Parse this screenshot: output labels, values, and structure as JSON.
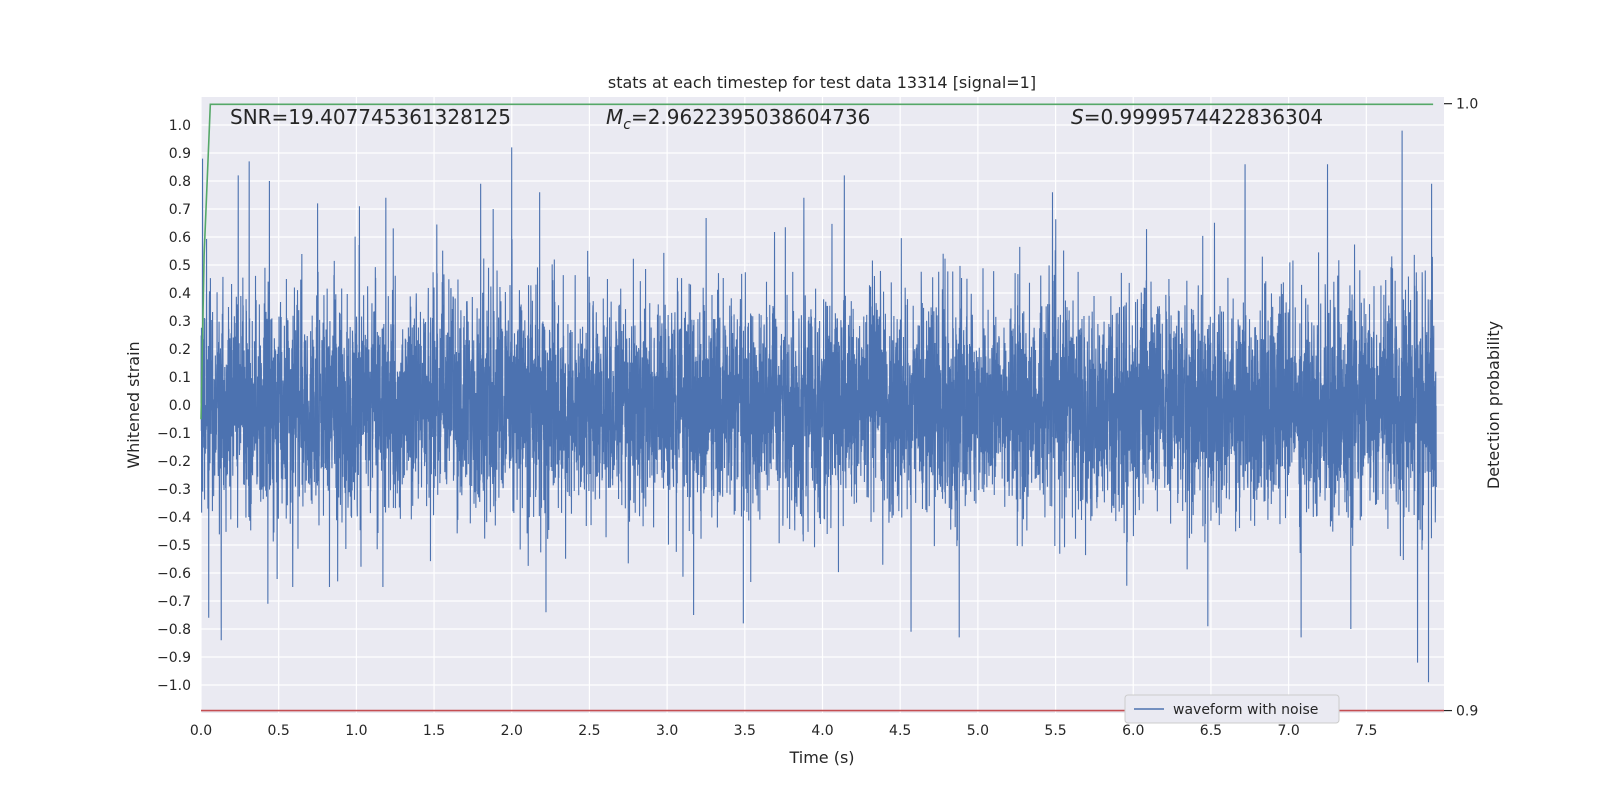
{
  "chart_data": {
    "type": "line",
    "title": "stats at each timestep for test data 13314 [signal=1]",
    "xlabel": "Time (s)",
    "ylabel": "Whitened strain",
    "ylabel_right": "Detection probability",
    "xlim": [
      0.0,
      8.0
    ],
    "ylim": [
      -1.1,
      1.1
    ],
    "ylim_right": [
      0.8996,
      1.0011
    ],
    "x_ticks": [
      "0.0",
      "0.5",
      "1.0",
      "1.5",
      "2.0",
      "2.5",
      "3.0",
      "3.5",
      "4.0",
      "4.5",
      "5.0",
      "5.5",
      "6.0",
      "6.5",
      "7.0",
      "7.5"
    ],
    "y_ticks": [
      "1.0",
      "0.9",
      "0.8",
      "0.7",
      "0.6",
      "0.5",
      "0.4",
      "0.3",
      "0.2",
      "0.1",
      "0.0",
      "−0.1",
      "−0.2",
      "−0.3",
      "−0.4",
      "−0.5",
      "−0.6",
      "−0.7",
      "−0.8",
      "−0.9",
      "−1.0"
    ],
    "y_ticks_right": [
      "1.0",
      "0.9"
    ],
    "grid": true,
    "legend": {
      "placement": "lower-right",
      "entries": [
        "waveform with noise"
      ]
    },
    "annotations": {
      "snr": "SNR=19.407745361328125",
      "mc_symbol": "M",
      "mc_sub": "c",
      "mc_value": "=2.9622395038604736",
      "s_symbol": "S",
      "s_value": "=0.9999574422836304"
    },
    "series": [
      {
        "name": "waveform with noise",
        "color": "#4c72b0",
        "axis": "left",
        "sample_count": 8000,
        "typical_abs": 0.2,
        "peaks": [
          {
            "x": 0.01,
            "y": 0.88
          },
          {
            "x": 0.05,
            "y": -0.76
          },
          {
            "x": 0.13,
            "y": -0.84
          },
          {
            "x": 0.24,
            "y": 0.82
          },
          {
            "x": 0.31,
            "y": 0.87
          },
          {
            "x": 0.44,
            "y": 0.8
          },
          {
            "x": 0.43,
            "y": -0.71
          },
          {
            "x": 0.75,
            "y": 0.72
          },
          {
            "x": 1.02,
            "y": 0.71
          },
          {
            "x": 1.19,
            "y": 0.74
          },
          {
            "x": 1.8,
            "y": 0.79
          },
          {
            "x": 1.88,
            "y": 0.7
          },
          {
            "x": 2.0,
            "y": 0.92
          },
          {
            "x": 2.18,
            "y": 0.76
          },
          {
            "x": 2.22,
            "y": -0.74
          },
          {
            "x": 3.17,
            "y": 0.71
          },
          {
            "x": 3.17,
            "y": -0.75
          },
          {
            "x": 3.49,
            "y": -0.78
          },
          {
            "x": 3.88,
            "y": 0.74
          },
          {
            "x": 4.14,
            "y": 0.82
          },
          {
            "x": 4.57,
            "y": -0.81
          },
          {
            "x": 4.88,
            "y": -0.83
          },
          {
            "x": 5.48,
            "y": 0.76
          },
          {
            "x": 6.48,
            "y": -0.79
          },
          {
            "x": 6.72,
            "y": 0.86
          },
          {
            "x": 7.08,
            "y": -0.83
          },
          {
            "x": 7.25,
            "y": 0.86
          },
          {
            "x": 7.4,
            "y": -0.8
          },
          {
            "x": 7.73,
            "y": 0.98
          },
          {
            "x": 7.83,
            "y": -0.92
          },
          {
            "x": 7.9,
            "y": -0.99
          },
          {
            "x": 7.92,
            "y": 0.79
          }
        ]
      },
      {
        "name": "",
        "color": "#55a868",
        "axis": "right",
        "x": [
          0.0,
          0.02,
          0.06,
          7.93
        ],
        "y": [
          0.948,
          0.975,
          0.9999,
          0.9999
        ]
      },
      {
        "name": "",
        "color": "#c44e52",
        "axis": "right",
        "x": [
          0.0,
          8.0
        ],
        "y": [
          0.9,
          0.9
        ]
      }
    ]
  }
}
